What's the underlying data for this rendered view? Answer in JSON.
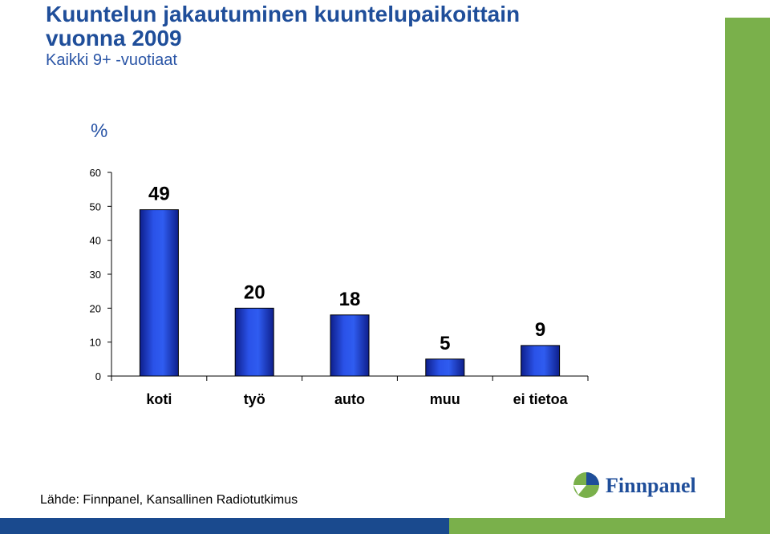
{
  "header": {
    "title_line1": "Kuuntelun jakautuminen kuuntelupaikoittain",
    "title_line2": "vuonna 2009",
    "subtitle": "Kaikki 9+ -vuotiaat",
    "unit": "%"
  },
  "footer": {
    "source": "Lähde: Finnpanel, Kansallinen Radiotutkimus",
    "logo_text": "Finnpanel"
  },
  "colors": {
    "bar": "#1f3fd0",
    "accent_green": "#7ab04b",
    "accent_blue": "#1a4a8e"
  },
  "chart_data": {
    "type": "bar",
    "categories": [
      "koti",
      "työ",
      "auto",
      "muu",
      "ei tietoa"
    ],
    "values": [
      49,
      20,
      18,
      5,
      9
    ],
    "data_labels": [
      "49",
      "20",
      "18",
      "5",
      "9"
    ],
    "ylabel": "%",
    "ylim": [
      0,
      60
    ],
    "yticks": [
      0,
      10,
      20,
      30,
      40,
      50,
      60
    ],
    "grid": false,
    "legend": "none"
  }
}
